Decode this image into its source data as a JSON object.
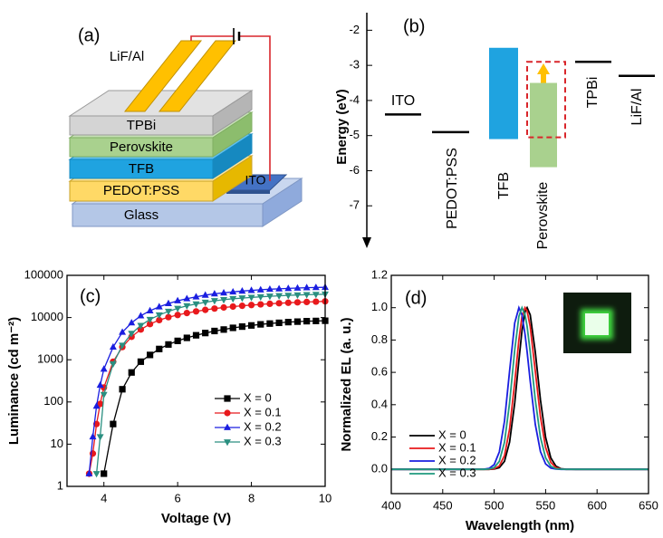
{
  "device_diagram": {
    "label": "(a)",
    "electrode": "LiF/Al",
    "anode": "ITO",
    "layers": [
      "TPBi",
      "Perovskite",
      "TFB",
      "PEDOT:PSS",
      "Glass"
    ]
  },
  "chart_data": [
    {
      "type": "energy",
      "label": "(b)",
      "ylabel": "Energy (eV)",
      "ylim": [
        -8,
        -1.5
      ],
      "yticks": [
        -2,
        -3,
        -4,
        -5,
        -6,
        -7
      ],
      "levels": [
        {
          "name": "ITO",
          "values": [
            -4.4
          ]
        },
        {
          "name": "PEDOT:PSS",
          "values": [
            -4.9
          ]
        },
        {
          "name": "TFB",
          "color": "#1fa3e0",
          "values": [
            -2.5,
            -5.1
          ]
        },
        {
          "name": "Perovskite",
          "color": "#a9d18e",
          "values": [
            -3.5,
            -5.9
          ]
        },
        {
          "name": "TPBi",
          "values": [
            -2.9
          ]
        },
        {
          "name": "LiF/Al",
          "values": [
            -3.3
          ]
        }
      ],
      "highlight": {
        "color": "#d9262b",
        "values": [
          -2.9,
          -5.05
        ]
      }
    },
    {
      "type": "line",
      "label": "(c)",
      "xlabel": "Voltage (V)",
      "ylabel": "Luminance (cd m⁻²)",
      "log_y": true,
      "xlim": [
        3,
        10
      ],
      "ylim": [
        1,
        100000
      ],
      "xticks": [
        4,
        6,
        8,
        10
      ],
      "yticks": [
        1,
        10,
        100,
        1000,
        10000,
        100000
      ],
      "legend": "lower right",
      "x": [
        3.6,
        3.7,
        3.8,
        3.9,
        4,
        4.25,
        4.5,
        4.75,
        5,
        5.25,
        5.5,
        5.75,
        6,
        6.25,
        6.5,
        6.75,
        7,
        7.25,
        7.5,
        7.75,
        8,
        8.25,
        8.5,
        8.75,
        9,
        9.25,
        9.5,
        9.75,
        10
      ],
      "series": [
        {
          "name": "X = 0",
          "color": "#000000",
          "marker": "square",
          "values": [
            null,
            null,
            null,
            null,
            2,
            30,
            200,
            500,
            900,
            1300,
            1800,
            2300,
            2800,
            3300,
            3800,
            4300,
            4800,
            5200,
            5700,
            6100,
            6500,
            6900,
            7200,
            7500,
            7800,
            8000,
            8200,
            8300,
            8400
          ]
        },
        {
          "name": "X = 0.1",
          "color": "#e8191c",
          "marker": "circle",
          "values": [
            2,
            6,
            30,
            90,
            220,
            900,
            2000,
            3500,
            5200,
            7000,
            8700,
            10200,
            11500,
            12800,
            14000,
            15200,
            16300,
            17300,
            18200,
            19000,
            19800,
            20500,
            21200,
            21800,
            22400,
            22900,
            23400,
            23800,
            24200
          ]
        },
        {
          "name": "X = 0.2",
          "color": "#1a1ee0",
          "marker": "triangle-up",
          "values": [
            2,
            15,
            80,
            250,
            600,
            2000,
            4500,
            7500,
            11000,
            14500,
            18000,
            21500,
            25000,
            28000,
            31000,
            34000,
            36500,
            38500,
            40500,
            42500,
            44000,
            45500,
            47000,
            48000,
            49000,
            50000,
            51000,
            51500,
            52000
          ]
        },
        {
          "name": "X = 0.3",
          "color": "#2a8f80",
          "marker": "triangle-down",
          "values": [
            null,
            null,
            2,
            15,
            150,
            800,
            2200,
            4200,
            6500,
            9000,
            11500,
            14000,
            16500,
            19000,
            21000,
            23000,
            25000,
            26500,
            28000,
            29000,
            30000,
            31000,
            32000,
            32800,
            33500,
            34200,
            34800,
            35300,
            35800
          ]
        }
      ]
    },
    {
      "type": "line",
      "label": "(d)",
      "xlabel": "Wavelength (nm)",
      "ylabel": "Normalized EL (a. u.)",
      "xlim": [
        400,
        650
      ],
      "ylim": [
        -0.15,
        1.2
      ],
      "xticks": [
        400,
        450,
        500,
        550,
        600,
        650
      ],
      "yticks": [
        {
          "value": 0,
          "label": "0.0"
        },
        0.2,
        0.4,
        0.6,
        0.8,
        {
          "value": 1,
          "label": "1.0"
        },
        1.2
      ],
      "legend": "center left",
      "x": [
        400,
        470,
        490,
        495,
        500,
        505,
        510,
        515,
        520,
        524,
        527,
        530,
        532,
        535,
        540,
        545,
        550,
        555,
        560,
        565,
        570,
        580,
        600,
        650
      ],
      "series": [
        {
          "name": "X = 0",
          "color": "#000000",
          "values": [
            0,
            0,
            0,
            0,
            0.002,
            0.011,
            0.05,
            0.168,
            0.411,
            0.674,
            0.857,
            0.976,
            1,
            0.956,
            0.726,
            0.43,
            0.198,
            0.071,
            0.02,
            0.004,
            0.001,
            0,
            0,
            0
          ]
        },
        {
          "name": "X = 0.1",
          "color": "#e8191c",
          "values": [
            0,
            0,
            0,
            0,
            0.004,
            0.021,
            0.085,
            0.249,
            0.539,
            0.801,
            0.946,
            1,
            0.98,
            0.883,
            0.607,
            0.325,
            0.135,
            0.044,
            0.011,
            0.002,
            0,
            0,
            0,
            0
          ]
        },
        {
          "name": "X = 0.2",
          "color": "#1a1ee0",
          "values": [
            0,
            0,
            0.001,
            0.006,
            0.029,
            0.108,
            0.298,
            0.607,
            0.906,
            1,
            0.956,
            0.835,
            0.726,
            0.546,
            0.278,
            0.11,
            0.034,
            0.008,
            0.002,
            0,
            0,
            0,
            0,
            0
          ]
        },
        {
          "name": "X = 0.3",
          "color": "#1f9a7e",
          "values": [
            0,
            0,
            0,
            0.002,
            0.011,
            0.05,
            0.168,
            0.411,
            0.739,
            0.946,
            1,
            0.956,
            0.883,
            0.726,
            0.43,
            0.198,
            0.071,
            0.02,
            0.004,
            0.001,
            0,
            0,
            0,
            0
          ]
        }
      ]
    }
  ]
}
